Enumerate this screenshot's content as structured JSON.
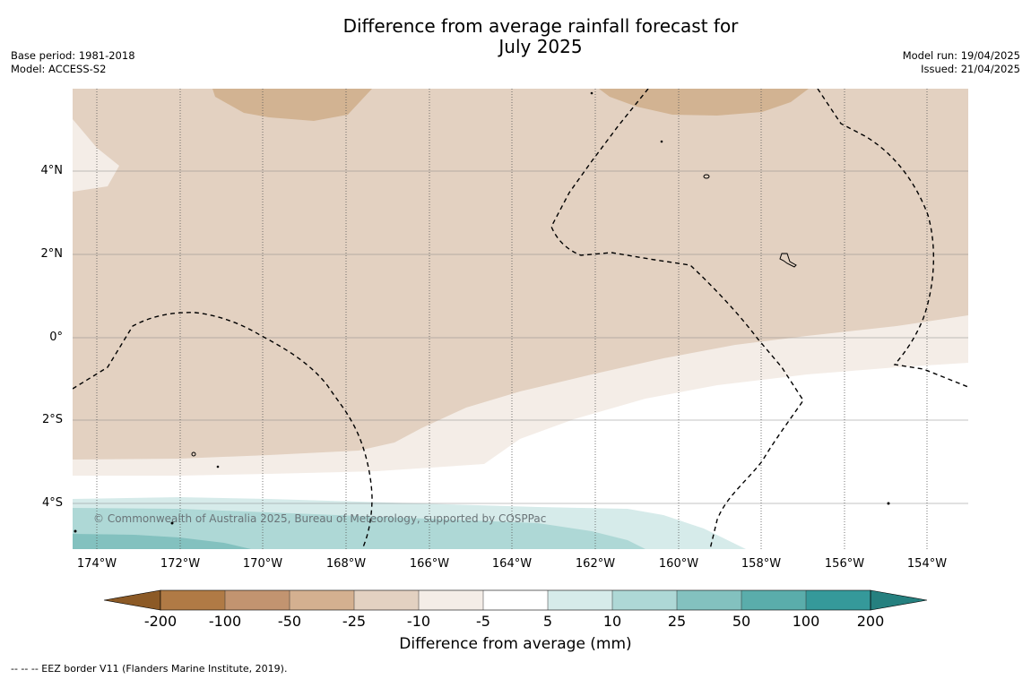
{
  "title_line1": "Difference from average rainfall forecast for",
  "title_line2": "July 2025",
  "base_period": "Base period: 1981-2018",
  "model": "Model: ACCESS-S2",
  "model_run": "Model run: 19/04/2025",
  "issued": "Issued: 21/04/2025",
  "copyright": "© Commonwealth of Australia 2025, Bureau of Meteorology, supported by COSPPac",
  "lat_labels": [
    "4°N",
    "2°N",
    "0°",
    "2°S",
    "4°S"
  ],
  "lon_labels": [
    "174°W",
    "172°W",
    "170°W",
    "168°W",
    "166°W",
    "164°W",
    "162°W",
    "160°W",
    "158°W",
    "156°W",
    "154°W"
  ],
  "colorbar": {
    "title": "Difference from average (mm)",
    "tick_labels": [
      "-200",
      "-100",
      "-50",
      "-25",
      "-10",
      "-5",
      "5",
      "10",
      "25",
      "50",
      "100",
      "200"
    ],
    "colors": [
      "#8c5a26",
      "#b07a45",
      "#c29470",
      "#d4b090",
      "#e3d1c1",
      "#f4ede7",
      "#ffffff",
      "#d6ebea",
      "#aed8d6",
      "#83c1bf",
      "#5aadab",
      "#35999a",
      "#25807f"
    ]
  },
  "legend_note": "--  --  -- EEZ border V11 (Flanders Marine Institute, 2019)."
}
